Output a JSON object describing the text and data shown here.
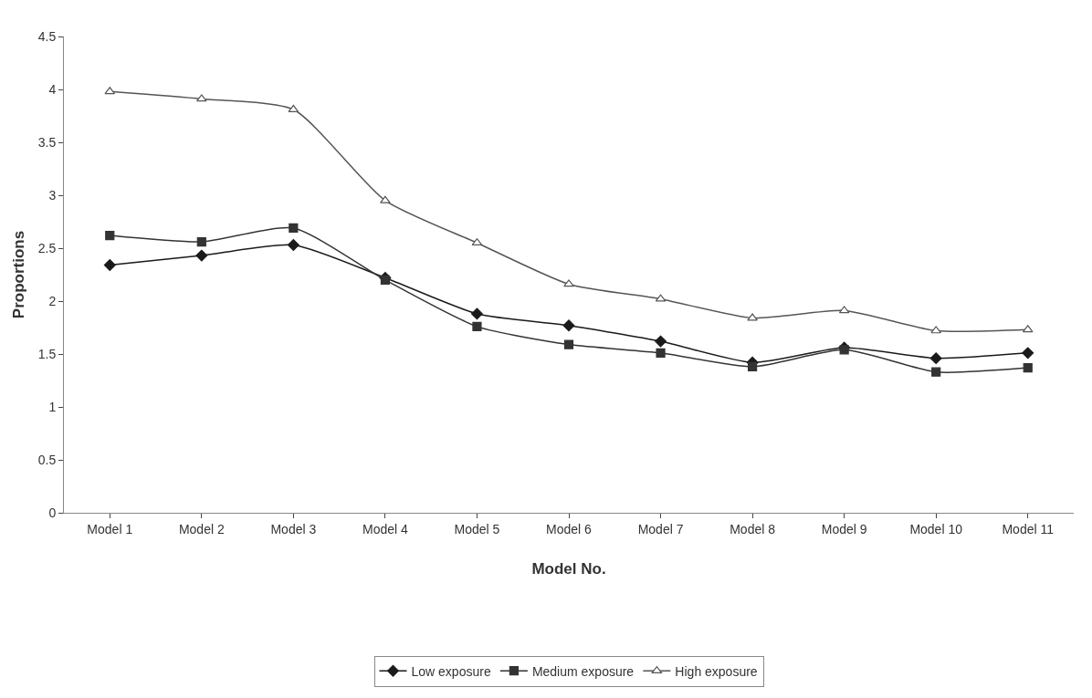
{
  "chart_data": {
    "type": "line",
    "xlabel": "Model No.",
    "ylabel": "Proportions",
    "categories": [
      "Model 1",
      "Model 2",
      "Model 3",
      "Model 4",
      "Model 5",
      "Model 6",
      "Model 7",
      "Model 8",
      "Model 9",
      "Model 10",
      "Model 11"
    ],
    "series": [
      {
        "name": "Low exposure",
        "color": "#1a1a1a",
        "marker": "diamond",
        "values": [
          2.34,
          2.43,
          2.53,
          2.22,
          1.88,
          1.77,
          1.62,
          1.42,
          1.56,
          1.46,
          1.51
        ]
      },
      {
        "name": "Medium exposure",
        "color": "#333333",
        "marker": "square",
        "values": [
          2.62,
          2.56,
          2.69,
          2.2,
          1.76,
          1.59,
          1.51,
          1.38,
          1.54,
          1.33,
          1.37
        ]
      },
      {
        "name": "High exposure",
        "color": "#555555",
        "marker": "triangle",
        "values": [
          3.98,
          3.91,
          3.81,
          2.95,
          2.55,
          2.16,
          2.02,
          1.84,
          1.91,
          1.72,
          1.73
        ]
      }
    ],
    "ylim": [
      0,
      4.5
    ],
    "yticks": [
      0,
      {
        "value": 0.5,
        "label": "0.5"
      },
      1,
      1.5,
      2,
      2.5,
      3,
      3.5,
      4,
      {
        "value": 4.5,
        "label": "4.5"
      }
    ],
    "grid": false,
    "legend": "bottom",
    "line_style": "solid"
  }
}
